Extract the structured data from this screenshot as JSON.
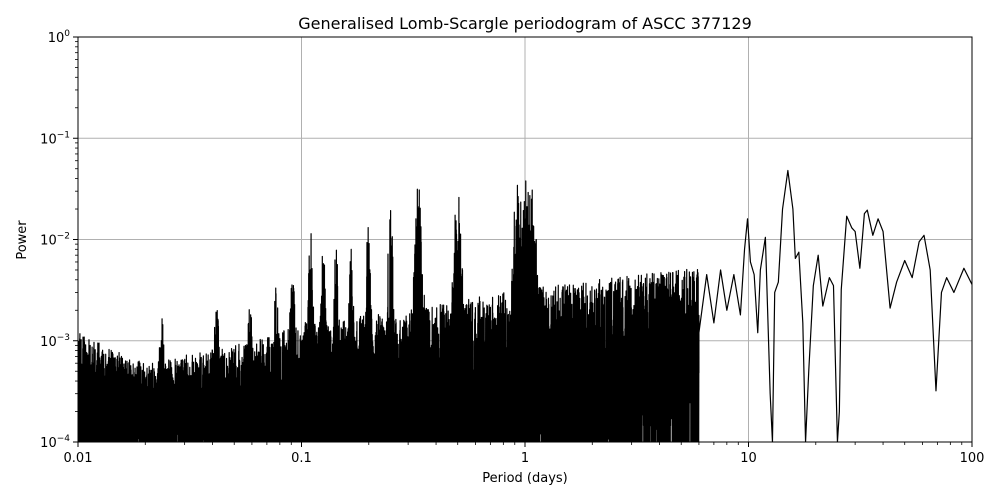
{
  "chart_data": {
    "type": "line",
    "title": "Generalised Lomb-Scargle periodogram of ASCC 377129",
    "xlabel": "Period (days)",
    "ylabel": "Power",
    "xscale": "log",
    "yscale": "log",
    "xlim": [
      0.01,
      100
    ],
    "ylim": [
      0.0001,
      1
    ],
    "grid": true,
    "legend": null,
    "x_ticks": [
      {
        "value": 0.01,
        "label": "0.01"
      },
      {
        "value": 0.1,
        "label": "0.1"
      },
      {
        "value": 1,
        "label": "1"
      },
      {
        "value": 10,
        "label": "10"
      },
      {
        "value": 100,
        "label": "100"
      }
    ],
    "y_ticks": [
      {
        "value": 0.0001,
        "base": "10",
        "exp": "−4"
      },
      {
        "value": 0.001,
        "base": "10",
        "exp": "−3"
      },
      {
        "value": 0.01,
        "base": "10",
        "exp": "−2"
      },
      {
        "value": 0.1,
        "base": "10",
        "exp": "−1"
      },
      {
        "value": 1,
        "base": "10",
        "exp": "0"
      }
    ],
    "line_color": "#000000",
    "grid_color": "#b0b0b0",
    "noise_envelope": [
      {
        "period": 0.01,
        "floor": 0.0001,
        "peak": 0.0012
      },
      {
        "period": 0.02,
        "floor": 0.0001,
        "peak": 0.0006
      },
      {
        "period": 0.05,
        "floor": 0.0001,
        "peak": 0.0009
      },
      {
        "period": 0.1,
        "floor": 0.0001,
        "peak": 0.0015
      },
      {
        "period": 0.3,
        "floor": 0.0001,
        "peak": 0.002
      },
      {
        "period": 0.8,
        "floor": 0.0001,
        "peak": 0.003
      },
      {
        "period": 2,
        "floor": 0.00015,
        "peak": 0.004
      },
      {
        "period": 5,
        "floor": 0.0003,
        "peak": 0.005
      },
      {
        "period": 10,
        "floor": 0.0008,
        "peak": 0.006
      }
    ],
    "harmonic_peaks": [
      {
        "period": 0.0238,
        "power": 0.0018
      },
      {
        "period": 0.0417,
        "power": 0.0022
      },
      {
        "period": 0.0588,
        "power": 0.0025
      },
      {
        "period": 0.0769,
        "power": 0.0035
      },
      {
        "period": 0.091,
        "power": 0.0055
      },
      {
        "period": 0.11,
        "power": 0.013
      },
      {
        "period": 0.125,
        "power": 0.009
      },
      {
        "period": 0.143,
        "power": 0.009
      },
      {
        "period": 0.1667,
        "power": 0.0105
      },
      {
        "period": 0.2,
        "power": 0.024
      },
      {
        "period": 0.25,
        "power": 0.038
      },
      {
        "period": 0.333,
        "power": 0.036
      },
      {
        "period": 0.5,
        "power": 0.035
      },
      {
        "period": 0.92,
        "power": 0.04
      },
      {
        "period": 0.96,
        "power": 0.03
      },
      {
        "period": 1.0,
        "power": 0.043
      },
      {
        "period": 1.04,
        "power": 0.038
      },
      {
        "period": 1.08,
        "power": 0.035
      },
      {
        "period": 9.9,
        "power": 0.016
      },
      {
        "period": 15.0,
        "power": 0.048
      },
      {
        "period": 27.5,
        "power": 0.017
      },
      {
        "period": 34.0,
        "power": 0.019
      },
      {
        "period": 61.0,
        "power": 0.011
      }
    ],
    "smooth_curve": [
      [
        6.0,
        0.0012
      ],
      [
        6.5,
        0.0045
      ],
      [
        7.0,
        0.0015
      ],
      [
        7.5,
        0.005
      ],
      [
        8.0,
        0.002
      ],
      [
        8.6,
        0.0045
      ],
      [
        9.2,
        0.0018
      ],
      [
        9.6,
        0.008
      ],
      [
        9.9,
        0.016
      ],
      [
        10.2,
        0.006
      ],
      [
        10.6,
        0.0045
      ],
      [
        11.0,
        0.0012
      ],
      [
        11.3,
        0.005
      ],
      [
        11.9,
        0.0105
      ],
      [
        12.5,
        0.0003
      ],
      [
        12.8,
        8e-05
      ],
      [
        13.1,
        0.003
      ],
      [
        13.6,
        0.0038
      ],
      [
        14.2,
        0.02
      ],
      [
        15.0,
        0.048
      ],
      [
        15.8,
        0.02
      ],
      [
        16.2,
        0.0065
      ],
      [
        16.8,
        0.0075
      ],
      [
        17.5,
        0.0015
      ],
      [
        18.0,
        8e-05
      ],
      [
        18.6,
        0.0005
      ],
      [
        19.5,
        0.0035
      ],
      [
        20.5,
        0.007
      ],
      [
        21.5,
        0.0022
      ],
      [
        23.0,
        0.0042
      ],
      [
        24.0,
        0.0035
      ],
      [
        25.0,
        0.0001
      ],
      [
        25.5,
        0.0002
      ],
      [
        26.0,
        0.0032
      ],
      [
        27.5,
        0.017
      ],
      [
        29.0,
        0.013
      ],
      [
        30.0,
        0.012
      ],
      [
        31.5,
        0.0052
      ],
      [
        33.0,
        0.018
      ],
      [
        34.0,
        0.0195
      ],
      [
        36.0,
        0.011
      ],
      [
        38.0,
        0.016
      ],
      [
        40.0,
        0.012
      ],
      [
        43.0,
        0.0021
      ],
      [
        46.0,
        0.0038
      ],
      [
        50.0,
        0.0062
      ],
      [
        54.0,
        0.0042
      ],
      [
        58.0,
        0.0095
      ],
      [
        61.0,
        0.011
      ],
      [
        65.0,
        0.005
      ],
      [
        69.0,
        0.00032
      ],
      [
        73.0,
        0.003
      ],
      [
        77.0,
        0.0042
      ],
      [
        83.0,
        0.003
      ],
      [
        92.0,
        0.0052
      ],
      [
        100.0,
        0.0036
      ]
    ]
  },
  "labels": {
    "title": "Generalised Lomb-Scargle periodogram of ASCC 377129",
    "xlabel": "Period (days)",
    "ylabel": "Power"
  }
}
